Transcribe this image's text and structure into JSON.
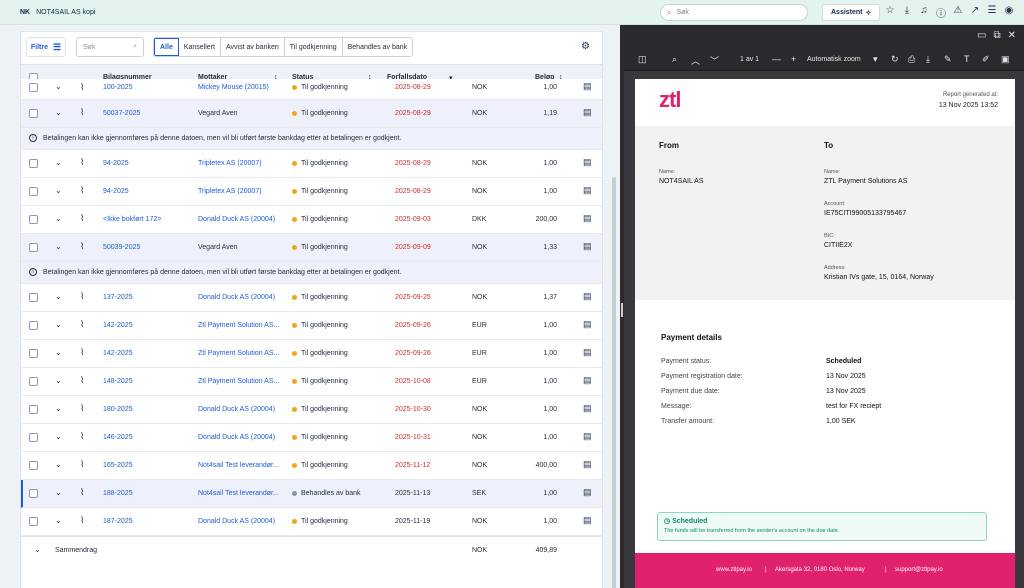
{
  "topbar": {
    "company_badge": "NK",
    "company_name": "NOT4SAIL AS kopi",
    "search_placeholder": "Søk",
    "assistant_label": "Assistent"
  },
  "toolbar": {
    "filter_label": "Filtre",
    "search_placeholder": "Søk",
    "chips": [
      "Alle",
      "Kansellert",
      "Avvist av banken",
      "Til godkjenning",
      "Behandles av bank"
    ]
  },
  "table": {
    "headers": {
      "number": "Bilagsnummer",
      "receiver": "Mottaker",
      "status": "Status",
      "due": "Forfallsdato",
      "amount": "Beløp"
    },
    "rows": [
      {
        "number": "100-2025",
        "receiver": "Mickey Mouse (20015)",
        "status": "Til godkjenning",
        "due": "2025-08-29",
        "currency": "NOK",
        "amount": "1,00"
      },
      {
        "number": "50037-2025",
        "receiver": "Vegard Aven",
        "status": "Til godkjenning",
        "due": "2025-08-29",
        "currency": "NOK",
        "amount": "1,19"
      },
      {
        "number": "94-2025",
        "receiver": "Tripletex AS (20007)",
        "status": "Til godkjenning",
        "due": "2025-08-29",
        "currency": "NOK",
        "amount": "1,00"
      },
      {
        "number": "94-2025",
        "receiver": "Tripletex AS (20007)",
        "status": "Til godkjenning",
        "due": "2025-08-29",
        "currency": "NOK",
        "amount": "1,00"
      },
      {
        "number": "<Ikke bokført 172>",
        "receiver": "Donald Duck AS (20004)",
        "status": "Til godkjenning",
        "due": "2025-09-03",
        "currency": "DKK",
        "amount": "200,00"
      },
      {
        "number": "50039-2025",
        "receiver": "Vegard Aven",
        "status": "Til godkjenning",
        "due": "2025-09-09",
        "currency": "NOK",
        "amount": "1,33"
      },
      {
        "number": "137-2025",
        "receiver": "Donald Duck AS (20004)",
        "status": "Til godkjenning",
        "due": "2025-09-25",
        "currency": "NOK",
        "amount": "1,37"
      },
      {
        "number": "142-2025",
        "receiver": "Ztl Payment Solution AS...",
        "status": "Til godkjenning",
        "due": "2025-09-26",
        "currency": "EUR",
        "amount": "1,00"
      },
      {
        "number": "142-2025",
        "receiver": "Ztl Payment Solution AS...",
        "status": "Til godkjenning",
        "due": "2025-09-26",
        "currency": "EUR",
        "amount": "1,00"
      },
      {
        "number": "148-2025",
        "receiver": "Ztl Payment Solution AS...",
        "status": "Til godkjenning",
        "due": "2025-10-08",
        "currency": "EUR",
        "amount": "1,00"
      },
      {
        "number": "180-2025",
        "receiver": "Donald Duck AS (20004)",
        "status": "Til godkjenning",
        "due": "2025-10-30",
        "currency": "NOK",
        "amount": "1,00"
      },
      {
        "number": "146-2025",
        "receiver": "Donald Duck AS (20004)",
        "status": "Til godkjenning",
        "due": "2025-10-31",
        "currency": "NOK",
        "amount": "1,00"
      },
      {
        "number": "165-2025",
        "receiver": "Not4sail Test leverandør...",
        "status": "Til godkjenning",
        "due": "2025-11-12",
        "currency": "NOK",
        "amount": "400,00"
      },
      {
        "number": "188-2025",
        "receiver": "Not4sail Test leverandør...",
        "status": "Behandles av bank",
        "due": "2025-11-13",
        "currency": "SEK",
        "amount": "1,00"
      },
      {
        "number": "187-2025",
        "receiver": "Donald Duck AS (20004)",
        "status": "Til godkjenning",
        "due": "2025-11-19",
        "currency": "NOK",
        "amount": "1,00"
      }
    ],
    "info_text": "Betalingen kan ikke gjennomføres på denne datoen, men vil bli utført første bankdag etter at betalingen er godkjent.",
    "summary_label": "Sammendrag",
    "summary_currency": "NOK",
    "summary_amount": "409,89"
  },
  "viewer": {
    "page_indicator": "1 av 1",
    "zoom_label": "Automatisk zoom"
  },
  "report": {
    "logo": "ztl",
    "generated_label": "Report generated at:",
    "generated_date": "13 Nov 2025 13:52",
    "from_heading": "From",
    "to_heading": "To",
    "name_label": "Name:",
    "from_name": "NOT4SAIL AS",
    "to_name": "ZTL Payment Solutions AS",
    "account_label": "Account:",
    "account": "IE75CITI99005133795467",
    "bic_label": "BIC:",
    "bic": "CITIIE2X",
    "address_label": "Address:",
    "address": "Kristian IVs gate, 15, 0164, Norway",
    "details_title": "Payment details",
    "details": [
      {
        "label": "Payment status:",
        "value": "Scheduled"
      },
      {
        "label": "Payment registration date:",
        "value": "13 Nov 2025"
      },
      {
        "label": "Payment due date:",
        "value": "13 Nov 2025"
      },
      {
        "label": "Message:",
        "value": "test for FX reciept"
      },
      {
        "label": "Transfer amount:",
        "value": "1,00 SEK"
      }
    ],
    "scheduled_title": "Scheduled",
    "scheduled_text": "The funds will be transferred from the sender's account on the due date.",
    "footer_web": "www.ztlpay.io",
    "footer_address": "Akersgata 32, 0180 Oslo, Norway",
    "footer_email": "support@ztlpay.io"
  },
  "colors": {
    "accent": "#1e5bd6",
    "due_red": "#d12b2b",
    "status_pending": "#f2a51a",
    "status_bank": "#8a96a3",
    "brand_pink": "#e0226e"
  }
}
